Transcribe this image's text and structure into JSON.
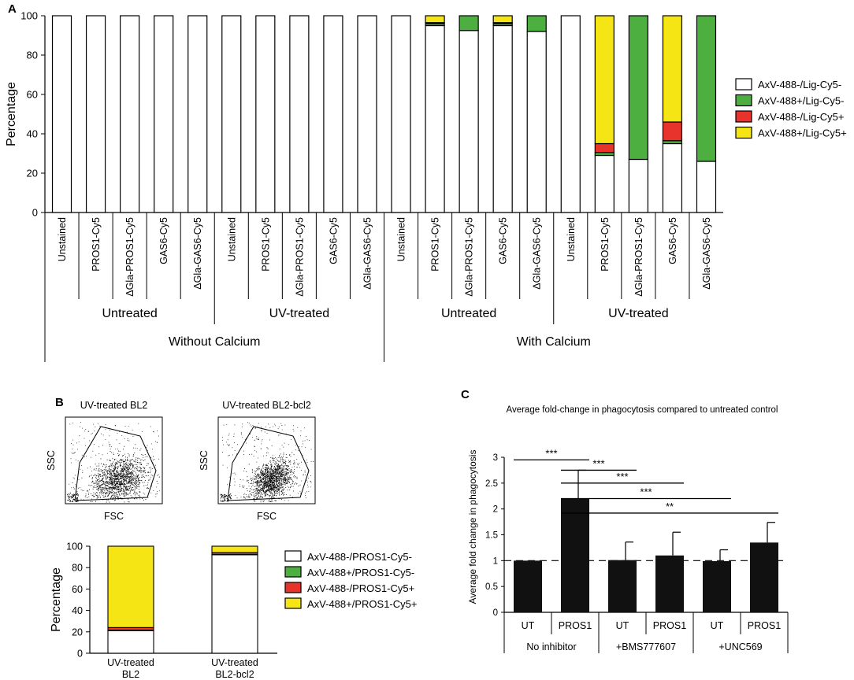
{
  "panel_labels": {
    "a": "A",
    "b": "B",
    "c": "C"
  },
  "colors": {
    "white": "#ffffff",
    "green": "#4caf3f",
    "red": "#e8322c",
    "yellow": "#f5e515",
    "dark": "#111111"
  },
  "chart_data": [
    {
      "id": "A",
      "type": "bar",
      "stacked": true,
      "ylabel": "Percentage",
      "ylim": [
        0,
        100
      ],
      "yticks": [
        0,
        20,
        40,
        60,
        80,
        100
      ],
      "categories": [
        "Unstained",
        "PROS1-Cy5",
        "ΔGla-PROS1-Cy5",
        "GAS6-Cy5",
        "ΔGla-GAS6-Cy5",
        "Unstained",
        "PROS1-Cy5",
        "ΔGla-PROS1-Cy5",
        "GAS6-Cy5",
        "ΔGla-GAS6-Cy5",
        "Unstained",
        "PROS1-Cy5",
        "ΔGla-PROS1-Cy5",
        "GAS6-Cy5",
        "ΔGla-GAS6-Cy5",
        "Unstained",
        "PROS1-Cy5",
        "ΔGla-PROS1-Cy5",
        "GAS6-Cy5",
        "ΔGla-GAS6-Cy5"
      ],
      "series": [
        {
          "name": "AxV-488-/Lig-Cy5-",
          "color": "#ffffff",
          "values": [
            100,
            100,
            100,
            100,
            100,
            100,
            100,
            100,
            100,
            100,
            100,
            95,
            92.5,
            95,
            92,
            100,
            29,
            27,
            35,
            26
          ]
        },
        {
          "name": "AxV-488+/Lig-Cy5-",
          "color": "#4caf3f",
          "values": [
            0,
            0,
            0,
            0,
            0,
            0,
            0,
            0,
            0,
            0,
            0,
            1,
            7.5,
            1,
            8,
            0,
            1.5,
            73,
            1.5,
            74
          ]
        },
        {
          "name": "AxV-488-/Lig-Cy5+",
          "color": "#e8322c",
          "values": [
            0,
            0,
            0,
            0,
            0,
            0,
            0,
            0,
            0,
            0,
            0,
            0.5,
            0,
            0.5,
            0,
            0,
            4.5,
            0,
            9.5,
            0
          ]
        },
        {
          "name": "AxV-488+/Lig-Cy5+",
          "color": "#f5e515",
          "values": [
            0,
            0,
            0,
            0,
            0,
            0,
            0,
            0,
            0,
            0,
            0,
            3.5,
            0,
            3.5,
            0,
            0,
            65,
            0,
            54,
            0
          ]
        }
      ],
      "group_labels": [
        "Untreated",
        "UV-treated",
        "Untreated",
        "UV-treated"
      ],
      "super_group_labels": [
        "Without Calcium",
        "With Calcium"
      ]
    },
    {
      "id": "B",
      "type": "bar",
      "stacked": true,
      "ylabel": "Percentage",
      "ylim": [
        0,
        100
      ],
      "yticks": [
        0,
        20,
        40,
        60,
        80,
        100
      ],
      "categories": [
        "UV-treated\nBL2",
        "UV-treated\nBL2-bcl2"
      ],
      "series": [
        {
          "name": "AxV-488-/PROS1-Cy5-",
          "color": "#ffffff",
          "values": [
            21,
            92
          ]
        },
        {
          "name": "AxV-488+/PROS1-Cy5-",
          "color": "#4caf3f",
          "values": [
            0.5,
            0.3
          ]
        },
        {
          "name": "AxV-488-/PROS1-Cy5+",
          "color": "#e8322c",
          "values": [
            2.5,
            1.7
          ]
        },
        {
          "name": "AxV-488+/PROS1-Cy5+",
          "color": "#f5e515",
          "values": [
            76,
            6
          ]
        }
      ],
      "scatter_titles": [
        "UV-treated BL2",
        "UV-treated BL2-bcl2"
      ],
      "scatter_xlabel": "FSC",
      "scatter_ylabel": "SSC"
    },
    {
      "id": "C",
      "type": "bar",
      "title": "Average fold-change in phagocytosis compared to untreated control",
      "ylabel": "Average fold change in phagocytosis",
      "ylim": [
        0,
        3
      ],
      "yticks": [
        0,
        0.5,
        1,
        1.5,
        2,
        2.5,
        3
      ],
      "ytick_labels": [
        "0",
        "0.5",
        "1",
        "1.5",
        "2",
        "2.5",
        "3"
      ],
      "categories": [
        "UT",
        "PROS1",
        "UT",
        "PROS1",
        "UT",
        "PROS1"
      ],
      "values": [
        1.0,
        2.2,
        1.01,
        1.1,
        0.99,
        1.35
      ],
      "errors": [
        0,
        0.55,
        0.35,
        0.45,
        0.22,
        0.39
      ],
      "group_labels": [
        "No inhibitor",
        "+BMS777607",
        "+UNC569"
      ],
      "reference_line": 1,
      "significance": [
        {
          "from": 0,
          "to": 1,
          "label": "***",
          "y": 2.95
        },
        {
          "from": 1,
          "to": 2,
          "label": "***",
          "y": 2.75
        },
        {
          "from": 1,
          "to": 3,
          "label": "***",
          "y": 2.5
        },
        {
          "from": 1,
          "to": 4,
          "label": "***",
          "y": 2.2
        },
        {
          "from": 1,
          "to": 5,
          "label": "**",
          "y": 1.92
        }
      ]
    }
  ]
}
